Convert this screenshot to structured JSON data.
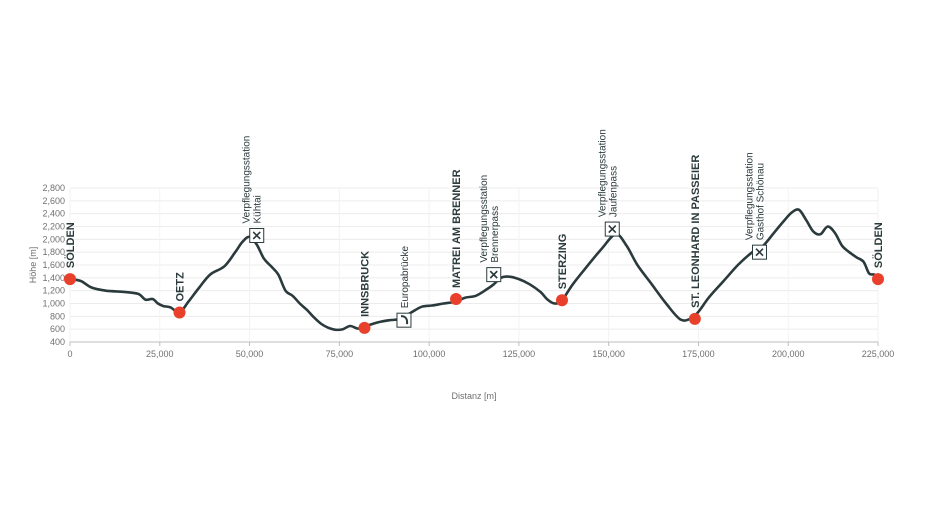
{
  "chart_data": {
    "type": "line",
    "xlabel": "Distanz [m]",
    "ylabel": "Höhe [m]",
    "xlim": [
      0,
      225000
    ],
    "ylim": [
      400,
      2800
    ],
    "x_ticks": [
      "0",
      "25,000",
      "50,000",
      "75,000",
      "100,000",
      "125,000",
      "150,000",
      "175,000",
      "200,000",
      "225,000"
    ],
    "y_ticks": [
      "400",
      "600",
      "800",
      "1,000",
      "1,200",
      "1,400",
      "1,600",
      "1,800",
      "2,000",
      "2,200",
      "2,400",
      "2,600",
      "2,800"
    ],
    "grid": true,
    "line_color": "#2b3a3c",
    "marker_color": "#e8402b",
    "series": [
      {
        "x": [
          0,
          3000,
          6000,
          10000,
          15000,
          19000,
          21000,
          23000,
          24500,
          26000,
          28000,
          30500,
          33000,
          36000,
          39000,
          43000,
          46000,
          48000,
          50000,
          52000,
          54000,
          56000,
          58000,
          60000,
          62000,
          64000,
          66000,
          68000,
          70000,
          72000,
          74000,
          76000,
          78000,
          80000,
          81500,
          83000,
          86000,
          89000,
          92000,
          95000,
          98000,
          101000,
          104000,
          107500,
          110000,
          113000,
          116000,
          118000,
          120000,
          122000,
          125000,
          128000,
          131000,
          133000,
          135000,
          137000,
          140000,
          144000,
          148000,
          152000,
          155000,
          158000,
          162000,
          166000,
          170000,
          173000,
          175000,
          178000,
          182000,
          186000,
          190000,
          193000,
          196000,
          199000,
          201000,
          203000,
          205000,
          207000,
          209000,
          211000,
          213000,
          215000,
          217000,
          219000,
          221000,
          222500,
          224000,
          225000
        ],
        "y": [
          1380,
          1350,
          1250,
          1200,
          1180,
          1150,
          1060,
          1070,
          1000,
          960,
          940,
          860,
          1030,
          1250,
          1450,
          1580,
          1800,
          1960,
          2040,
          1920,
          1700,
          1580,
          1450,
          1200,
          1120,
          1000,
          900,
          780,
          680,
          620,
          590,
          600,
          650,
          610,
          620,
          660,
          710,
          740,
          760,
          860,
          950,
          970,
          1000,
          1030,
          1090,
          1120,
          1220,
          1300,
          1400,
          1420,
          1380,
          1300,
          1180,
          1060,
          1000,
          1050,
          1300,
          1580,
          1850,
          2080,
          1900,
          1600,
          1300,
          1000,
          750,
          770,
          870,
          1100,
          1350,
          1600,
          1800,
          1900,
          2100,
          2300,
          2420,
          2460,
          2300,
          2120,
          2080,
          2200,
          2100,
          1900,
          1800,
          1720,
          1650,
          1470,
          1450,
          1400
        ]
      }
    ],
    "places": [
      {
        "name": "SÖLDEN",
        "x": 0,
        "y": 1380
      },
      {
        "name": "OETZ",
        "x": 30500,
        "y": 860
      },
      {
        "name": "INNSBRUCK",
        "x": 82000,
        "y": 620
      },
      {
        "name": "MATREI AM BRENNER",
        "x": 107500,
        "y": 1070
      },
      {
        "name": "STERZING",
        "x": 137000,
        "y": 1050
      },
      {
        "name": "ST. LEONHARD IN PASSEIER",
        "x": 174000,
        "y": 760
      },
      {
        "name": "SÖLDEN",
        "x": 225000,
        "y": 1380
      }
    ],
    "poi": [
      {
        "lines": [
          "Verpflegungsstation",
          "Kühtai"
        ],
        "icon": "aid-station-icon",
        "x": 52000,
        "y": 2060
      },
      {
        "lines": [
          "Europabrücke"
        ],
        "icon": "bridge-icon",
        "x": 93000,
        "y": 740
      },
      {
        "lines": [
          "Verpflegungsstation",
          "Brennerpass"
        ],
        "icon": "aid-station-icon",
        "x": 118000,
        "y": 1450
      },
      {
        "lines": [
          "Verpflegungsstation",
          "Jaufenpass"
        ],
        "icon": "aid-station-icon",
        "x": 151000,
        "y": 2160
      },
      {
        "lines": [
          "Verpflegungsstation",
          "Gasthof Schönau"
        ],
        "icon": "aid-station-icon",
        "x": 192000,
        "y": 1800
      }
    ]
  }
}
